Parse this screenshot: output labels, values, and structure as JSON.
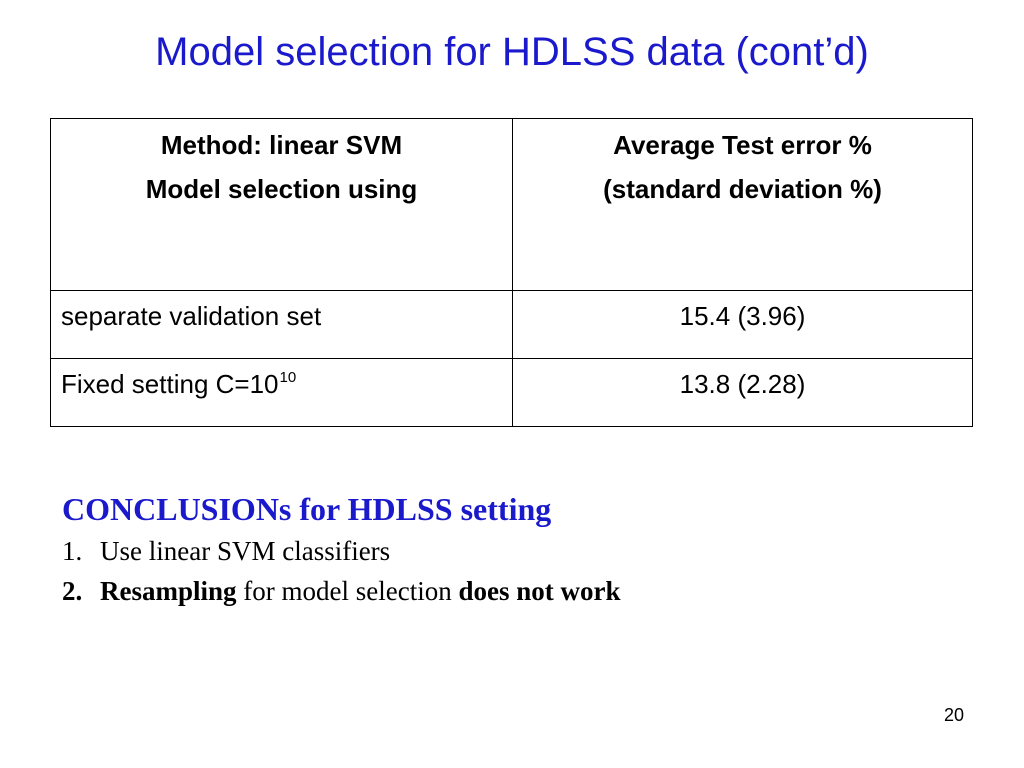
{
  "slide": {
    "title": "Model selection for HDLSS data (cont’d)",
    "page_number": "20"
  },
  "table": {
    "header": {
      "col1_line1": "Method: linear SVM",
      "col1_line2": "Model selection using",
      "col2_line1": "Average Test error %",
      "col2_line2": "(standard deviation %)"
    },
    "rows": [
      {
        "method": "separate validation set",
        "method_sup": "",
        "error": "15.4 (3.96)"
      },
      {
        "method": "Fixed setting C=10",
        "method_sup": "10",
        "error": "13.8 (2.28)"
      }
    ]
  },
  "conclusions": {
    "heading": "CONCLUSIONs for HDLSS setting",
    "items": [
      {
        "number": "1.",
        "text": "Use linear SVM classifiers"
      },
      {
        "number": "2.",
        "bold_start": "Resampling",
        "middle": " for model selection ",
        "bold_end": "does not work"
      }
    ]
  },
  "colors": {
    "title": "#1a1acc",
    "heading": "#1a1acc",
    "text": "#000000"
  }
}
